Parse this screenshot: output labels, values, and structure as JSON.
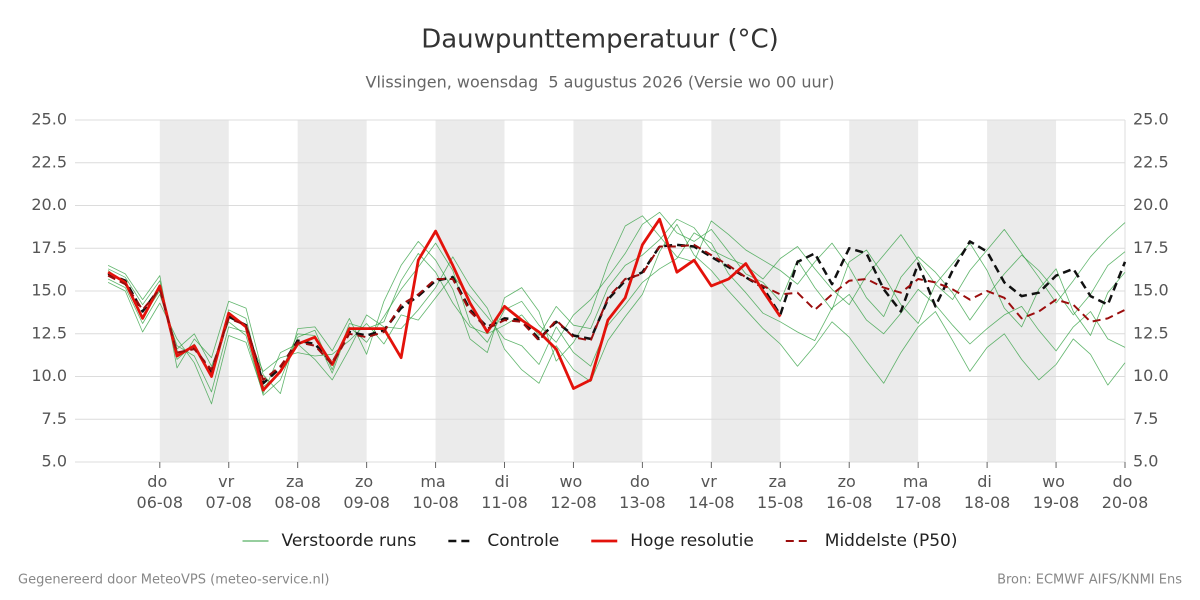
{
  "chart_data": {
    "type": "line",
    "title": "Dauwpunttemperatuur (°C)",
    "subtitle": "Vlissingen, woensdag  5 augustus 2026 (Versie wo 00 uur)",
    "footer_left": "Gegenereerd door MeteoVPS (meteo-service.nl)",
    "footer_right": "Bron: ECMWF AIFS/KNMI Ens",
    "x": [
      5.25,
      5.5,
      5.75,
      6,
      6.25,
      6.5,
      6.75,
      7,
      7.25,
      7.5,
      7.75,
      8,
      8.25,
      8.5,
      8.75,
      9,
      9.25,
      9.5,
      9.75,
      10,
      10.25,
      10.5,
      10.75,
      11,
      11.25,
      11.5,
      11.75,
      12,
      12.25,
      12.5,
      12.75,
      13,
      13.25,
      13.5,
      13.75,
      14,
      14.25,
      14.5,
      14.75,
      15,
      15.25,
      15.5,
      15.75,
      16,
      16.25,
      16.5,
      16.75,
      17,
      17.25,
      17.5,
      17.75,
      18,
      18.25,
      18.5,
      18.75,
      19,
      19.25,
      19.5,
      19.75,
      20
    ],
    "xlim": [
      4.77,
      20
    ],
    "xticks": [
      {
        "value": 6,
        "label": "do\n06-08"
      },
      {
        "value": 7,
        "label": "vr\n07-08"
      },
      {
        "value": 8,
        "label": "za\n08-08"
      },
      {
        "value": 9,
        "label": "zo\n09-08"
      },
      {
        "value": 10,
        "label": "ma\n10-08"
      },
      {
        "value": 11,
        "label": "di\n11-08"
      },
      {
        "value": 12,
        "label": "wo\n12-08"
      },
      {
        "value": 13,
        "label": "do\n13-08"
      },
      {
        "value": 14,
        "label": "vr\n14-08"
      },
      {
        "value": 15,
        "label": "za\n15-08"
      },
      {
        "value": 16,
        "label": "zo\n16-08"
      },
      {
        "value": 17,
        "label": "ma\n17-08"
      },
      {
        "value": 18,
        "label": "di\n18-08"
      },
      {
        "value": 19,
        "label": "wo\n19-08"
      },
      {
        "value": 20,
        "label": "do\n20-08"
      }
    ],
    "ylim": [
      5,
      25
    ],
    "yticks": [
      {
        "value": 5,
        "label": "5.0"
      },
      7.5,
      {
        "value": 10,
        "label": "10.0"
      },
      12.5,
      {
        "value": 15,
        "label": "15.0"
      },
      17.5,
      {
        "value": 20,
        "label": "20.0"
      },
      22.5,
      {
        "value": 25,
        "label": "25.0"
      }
    ],
    "grid": true,
    "series": [
      {
        "name": "Verstoorde runs",
        "color": "#2e9e3e",
        "line_width": 0.8,
        "dashed": false,
        "values": [
          16.3,
          15.8,
          14.2,
          15.6,
          11.0,
          11.9,
          10.0,
          13.9,
          13.4,
          9.4,
          10.2,
          12.5,
          12.4,
          10.2,
          12.9,
          12.0,
          13.5,
          15.1,
          16.4,
          17.8,
          16.2,
          13.1,
          12.0,
          13.9,
          14.4,
          13.0,
          12.0,
          13.6,
          14.5,
          15.8,
          17.2,
          18.9,
          19.6,
          18.4,
          17.9,
          18.6,
          17.3,
          16.0,
          15.5,
          14.4,
          16.8,
          15.2,
          13.9,
          16.7,
          17.4,
          15.9,
          14.2,
          13.1,
          15.4,
          16.6,
          17.8,
          16.2,
          14.0,
          12.9,
          15.1,
          16.3,
          13.8,
          12.4,
          14.9,
          16.1
        ]
      },
      {
        "name": "Verstoorde runs",
        "color": "#2e9e3e",
        "line_width": 0.8,
        "dashed": false,
        "values": [
          15.7,
          15.2,
          13.1,
          14.8,
          11.8,
          11.2,
          9.1,
          12.9,
          12.6,
          10.3,
          11.1,
          11.4,
          11.2,
          11.3,
          12.1,
          13.1,
          11.9,
          13.6,
          13.3,
          14.6,
          15.9,
          14.7,
          13.5,
          12.2,
          11.8,
          10.7,
          12.9,
          11.4,
          10.6,
          13.0,
          14.2,
          15.5,
          16.3,
          16.9,
          18.4,
          17.8,
          16.0,
          14.9,
          13.7,
          13.2,
          12.6,
          12.1,
          14.0,
          14.8,
          13.3,
          12.5,
          13.7,
          15.1,
          14.2,
          13.0,
          11.9,
          12.8,
          13.6,
          14.1,
          12.7,
          11.5,
          12.9,
          13.8,
          12.2,
          11.7
        ]
      },
      {
        "name": "Verstoorde runs",
        "color": "#2e9e3e",
        "line_width": 0.8,
        "dashed": false,
        "values": [
          16.5,
          16.0,
          14.5,
          15.9,
          10.5,
          12.2,
          11.1,
          14.4,
          14.0,
          10.1,
          9.0,
          12.8,
          12.9,
          11.5,
          13.4,
          11.3,
          14.4,
          16.5,
          17.9,
          16.8,
          15.1,
          12.2,
          11.4,
          14.6,
          15.2,
          13.8,
          10.9,
          12.0,
          13.7,
          16.6,
          18.8,
          19.4,
          18.2,
          17.0,
          16.7,
          19.1,
          18.3,
          17.4,
          16.8,
          16.2,
          15.4,
          16.7,
          17.8,
          16.4,
          14.6,
          13.5,
          15.8,
          17.0,
          16.1,
          14.9,
          13.3,
          14.7,
          16.0,
          17.1,
          16.2,
          15.0,
          13.6,
          14.8,
          16.5,
          17.3
        ]
      },
      {
        "name": "Verstoorde runs",
        "color": "#2e9e3e",
        "line_width": 0.8,
        "dashed": false,
        "values": [
          15.5,
          15.0,
          12.6,
          14.3,
          12.2,
          10.8,
          8.4,
          12.4,
          12.0,
          9.0,
          11.4,
          11.9,
          11.0,
          9.8,
          11.6,
          13.6,
          12.9,
          12.8,
          13.9,
          15.2,
          17.0,
          15.3,
          14.0,
          11.6,
          10.4,
          9.6,
          11.8,
          10.4,
          9.7,
          12.1,
          13.5,
          14.8,
          17.3,
          18.9,
          17.1,
          16.2,
          15.0,
          13.9,
          12.8,
          11.9,
          10.6,
          11.8,
          13.2,
          12.3,
          10.9,
          9.6,
          11.4,
          12.9,
          13.8,
          12.1,
          10.3,
          11.7,
          12.5,
          11.0,
          9.8,
          10.7,
          12.2,
          11.3,
          9.5,
          10.8
        ]
      },
      {
        "name": "Verstoorde runs",
        "color": "#2e9e3e",
        "line_width": 0.8,
        "dashed": false,
        "values": [
          16.2,
          15.4,
          13.5,
          15.0,
          11.6,
          12.5,
          10.6,
          13.2,
          12.4,
          8.9,
          9.8,
          12.3,
          12.7,
          10.4,
          13.1,
          12.8,
          13.2,
          15.6,
          17.2,
          16.1,
          14.3,
          12.9,
          12.5,
          13.0,
          13.6,
          12.4,
          14.1,
          13.0,
          12.8,
          15.2,
          16.5,
          17.1,
          18.0,
          19.2,
          18.7,
          17.4,
          16.9,
          16.5,
          15.7,
          16.9,
          17.6,
          16.3,
          15.1,
          14.2,
          15.9,
          17.1,
          18.3,
          16.8,
          15.4,
          14.5,
          16.2,
          17.4,
          18.6,
          17.2,
          15.8,
          14.3,
          15.6,
          17.0,
          18.1,
          19.0
        ]
      },
      {
        "name": "Controle",
        "color": "#111111",
        "line_width": 2.5,
        "dashed": true,
        "values": [
          16.0,
          15.6,
          13.8,
          15.2,
          11.3,
          11.7,
          10.2,
          13.5,
          13.0,
          9.6,
          10.5,
          12.1,
          11.9,
          10.8,
          12.6,
          12.4,
          12.7,
          14.0,
          14.7,
          15.6,
          15.8,
          13.9,
          12.9,
          13.4,
          13.3,
          12.2,
          13.2,
          12.4,
          12.2,
          14.5,
          15.6,
          16.1,
          17.6,
          17.7,
          17.6,
          17.0,
          16.4,
          15.8,
          15.2,
          13.6,
          16.7,
          17.2,
          15.4,
          17.5,
          17.2,
          15.1,
          13.8,
          16.6,
          14.1,
          16.2,
          17.9,
          17.3,
          15.5,
          14.7,
          14.9,
          15.9,
          16.3,
          14.7,
          14.2,
          16.7
        ]
      },
      {
        "name": "Hoge resolutie",
        "color": "#e3120b",
        "line_width": 2.8,
        "dashed": false,
        "values": [
          16.1,
          15.5,
          13.4,
          15.3,
          11.2,
          11.8,
          10.0,
          13.7,
          12.9,
          9.2,
          10.3,
          11.9,
          12.3,
          10.7,
          12.8,
          12.8,
          12.8,
          11.1,
          16.8,
          18.5,
          16.5,
          14.3,
          12.6,
          14.1,
          13.3,
          12.6,
          11.6,
          9.3,
          9.8,
          13.3,
          14.6,
          17.7,
          19.2,
          16.1,
          16.8,
          15.3,
          15.7,
          16.6,
          15.0,
          13.5,
          null,
          null,
          null,
          null,
          null,
          null,
          null,
          null,
          null,
          null,
          null,
          null,
          null,
          null,
          null,
          null,
          null,
          null,
          null,
          null
        ]
      },
      {
        "name": "Middelste (P50)",
        "color": "#9b0d0d",
        "line_width": 2,
        "dashed": true,
        "values": [
          15.9,
          15.4,
          13.9,
          15.1,
          11.4,
          11.6,
          10.4,
          13.4,
          13.0,
          9.8,
          10.6,
          12.0,
          11.8,
          10.7,
          12.5,
          12.3,
          12.6,
          14.2,
          14.8,
          15.7,
          15.7,
          13.8,
          12.8,
          13.3,
          13.2,
          12.1,
          13.3,
          12.3,
          12.1,
          14.6,
          15.7,
          16.0,
          17.6,
          17.6,
          17.7,
          17.1,
          16.5,
          15.8,
          15.3,
          14.8,
          14.9,
          13.9,
          14.8,
          15.6,
          15.7,
          15.2,
          14.9,
          15.7,
          15.5,
          15.1,
          14.5,
          15.0,
          14.6,
          13.4,
          13.8,
          14.5,
          14.2,
          13.2,
          13.4,
          13.9
        ]
      }
    ]
  }
}
